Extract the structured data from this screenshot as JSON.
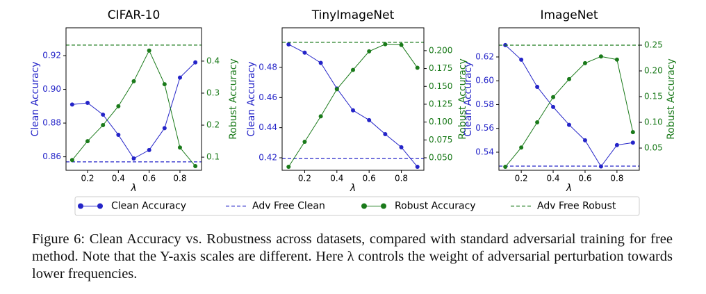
{
  "chart_data": [
    {
      "type": "line",
      "title": "CIFAR-10",
      "xlabel": "λ",
      "ylabel": "Clean Accuracy",
      "y2label": "Robust Accuracy",
      "x": [
        0.1,
        0.2,
        0.3,
        0.4,
        0.5,
        0.6,
        0.7,
        0.8,
        0.9
      ],
      "xlim": [
        0.06,
        0.94
      ],
      "xticks": [
        0.2,
        0.4,
        0.6,
        0.8
      ],
      "ylim": [
        0.852,
        0.9365
      ],
      "yticks": [
        0.86,
        0.88,
        {
          "value": 0.9,
          "label": "0.90"
        },
        0.92
      ],
      "y2lim": [
        0.059,
        0.504
      ],
      "y2ticks": [
        0.1,
        0.2,
        0.3,
        0.4
      ],
      "series": [
        {
          "style": "line",
          "color": "#2424c8",
          "values": [
            0.891,
            0.892,
            0.885,
            0.873,
            0.859,
            0.864,
            0.877,
            0.907,
            0.916
          ]
        },
        {
          "style": "dashed",
          "color": "#2424c8",
          "value": 0.857
        },
        {
          "style": "line",
          "axis": "y2",
          "color": "#1a7a1a",
          "values": [
            0.091,
            0.15,
            0.2,
            0.259,
            0.337,
            0.433,
            0.328,
            0.13,
            0.072
          ]
        },
        {
          "style": "dashed",
          "axis": "y2",
          "color": "#1a7a1a",
          "value": 0.45
        }
      ]
    },
    {
      "type": "line",
      "title": "TinyImageNet",
      "xlabel": "λ",
      "ylabel": "Clean Accuracy",
      "y2label": "Robust Accuracy",
      "x": [
        0.1,
        0.2,
        0.3,
        0.4,
        0.5,
        0.6,
        0.7,
        0.8,
        0.9
      ],
      "xlim": [
        0.06,
        0.94
      ],
      "xticks": [
        0.2,
        0.4,
        0.6,
        0.8
      ],
      "ylim": [
        0.4117,
        0.5063
      ],
      "yticks": [
        0.42,
        0.44,
        0.46,
        0.48
      ],
      "y2lim": [
        0.0325,
        0.232
      ],
      "y2ticks": [
        {
          "value": 0.05,
          "label": "0.050"
        },
        0.075,
        {
          "value": 0.1,
          "label": "0.100"
        },
        0.125,
        {
          "value": 0.15,
          "label": "0.150"
        },
        0.175,
        {
          "value": 0.2,
          "label": "0.200"
        }
      ],
      "series": [
        {
          "style": "line",
          "color": "#2424c8",
          "values": [
            0.4953,
            0.4898,
            0.483,
            0.466,
            0.4515,
            0.445,
            0.4357,
            0.427,
            0.414
          ]
        },
        {
          "style": "dashed",
          "color": "#2424c8",
          "value": 0.4195
        },
        {
          "style": "line",
          "axis": "y2",
          "color": "#1a7a1a",
          "values": [
            0.0374,
            0.0724,
            0.108,
            0.146,
            0.173,
            0.199,
            0.209,
            0.208,
            0.176
          ]
        },
        {
          "style": "dashed",
          "axis": "y2",
          "color": "#1a7a1a",
          "value": 0.2117
        }
      ]
    },
    {
      "type": "line",
      "title": "ImageNet",
      "xlabel": "λ",
      "ylabel": "Clean Accuracy",
      "y2label": "Robust Accuracy",
      "x": [
        0.1,
        0.2,
        0.3,
        0.4,
        0.5,
        0.6,
        0.7,
        0.8,
        0.9
      ],
      "xlim": [
        0.06,
        0.94
      ],
      "xticks": [
        0.2,
        0.4,
        0.6,
        0.8
      ],
      "ylim": [
        0.5248,
        0.6445
      ],
      "yticks": [
        0.54,
        0.56,
        0.58,
        {
          "value": 0.6,
          "label": "0.60"
        },
        0.62
      ],
      "y2lim": [
        0.0068,
        0.2838
      ],
      "y2ticks": [
        0.05,
        {
          "value": 0.1,
          "label": "0.10"
        },
        0.15,
        {
          "value": 0.2,
          "label": "0.20"
        },
        0.25
      ],
      "series": [
        {
          "style": "line",
          "color": "#2424c8",
          "values": [
            0.63,
            0.6177,
            0.5949,
            0.578,
            0.563,
            0.55,
            0.528,
            0.546,
            0.548
          ]
        },
        {
          "style": "dashed",
          "color": "#2424c8",
          "value": 0.5283
        },
        {
          "style": "line",
          "axis": "y2",
          "color": "#1a7a1a",
          "values": [
            0.0135,
            0.051,
            0.1,
            0.149,
            0.184,
            0.215,
            0.228,
            0.222,
            0.081
          ]
        },
        {
          "style": "dashed",
          "axis": "y2",
          "color": "#1a7a1a",
          "value": 0.25
        }
      ]
    }
  ],
  "legend": [
    "Clean Accuracy",
    "Adv Free Clean",
    "Robust Accuracy",
    "Adv Free Robust"
  ],
  "caption": "Figure 6: Clean Accuracy vs. Robustness across datasets, compared with standard adversarial training for free method. Note that the Y-axis scales are different. Here λ controls the weight of adversarial perturbation towards lower frequencies."
}
